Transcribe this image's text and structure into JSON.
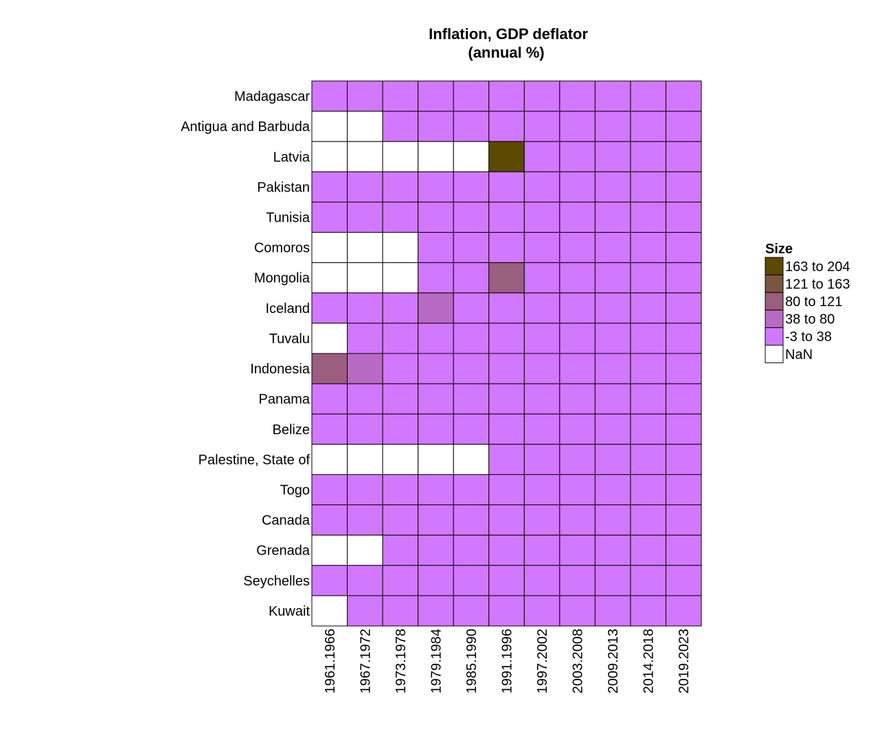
{
  "chart_data": {
    "type": "heatmap",
    "title": "Inflation, GDP deflator",
    "subtitle": "(annual %)",
    "columns": [
      "1961.1966",
      "1967.1972",
      "1973.1978",
      "1979.1984",
      "1985.1990",
      "1991.1996",
      "1997.2002",
      "2003.2008",
      "2009.2013",
      "2014.2018",
      "2019.2023"
    ],
    "rows": [
      "Madagascar",
      "Antigua and Barbuda",
      "Latvia",
      "Pakistan",
      "Tunisia",
      "Comoros",
      "Mongolia",
      "Iceland",
      "Tuvalu",
      "Indonesia",
      "Panama",
      "Belize",
      "Palestine, State of",
      "Togo",
      "Canada",
      "Grenada",
      "Seychelles",
      "Kuwait"
    ],
    "cells": [
      [
        1,
        1,
        1,
        1,
        1,
        1,
        1,
        1,
        1,
        1,
        1
      ],
      [
        0,
        0,
        1,
        1,
        1,
        1,
        1,
        1,
        1,
        1,
        1
      ],
      [
        0,
        0,
        0,
        0,
        0,
        5,
        1,
        1,
        1,
        1,
        1
      ],
      [
        1,
        1,
        1,
        1,
        1,
        1,
        1,
        1,
        1,
        1,
        1
      ],
      [
        1,
        1,
        1,
        1,
        1,
        1,
        1,
        1,
        1,
        1,
        1
      ],
      [
        0,
        0,
        0,
        1,
        1,
        1,
        1,
        1,
        1,
        1,
        1
      ],
      [
        0,
        0,
        0,
        1,
        1,
        3,
        1,
        1,
        1,
        1,
        1
      ],
      [
        1,
        1,
        1,
        2,
        1,
        1,
        1,
        1,
        1,
        1,
        1
      ],
      [
        0,
        1,
        1,
        1,
        1,
        1,
        1,
        1,
        1,
        1,
        1
      ],
      [
        3,
        2,
        1,
        1,
        1,
        1,
        1,
        1,
        1,
        1,
        1
      ],
      [
        1,
        1,
        1,
        1,
        1,
        1,
        1,
        1,
        1,
        1,
        1
      ],
      [
        1,
        1,
        1,
        1,
        1,
        1,
        1,
        1,
        1,
        1,
        1
      ],
      [
        0,
        0,
        0,
        0,
        0,
        1,
        1,
        1,
        1,
        1,
        1
      ],
      [
        1,
        1,
        1,
        1,
        1,
        1,
        1,
        1,
        1,
        1,
        1
      ],
      [
        1,
        1,
        1,
        1,
        1,
        1,
        1,
        1,
        1,
        1,
        1
      ],
      [
        0,
        0,
        1,
        1,
        1,
        1,
        1,
        1,
        1,
        1,
        1
      ],
      [
        1,
        1,
        1,
        1,
        1,
        1,
        1,
        1,
        1,
        1,
        1
      ],
      [
        0,
        1,
        1,
        1,
        1,
        1,
        1,
        1,
        1,
        1,
        1
      ]
    ],
    "legend": {
      "title": "Size",
      "placement": "right",
      "bins": [
        {
          "label": "163 to 204",
          "color": "#5c4a00"
        },
        {
          "label": "121 to 163",
          "color": "#7a5542"
        },
        {
          "label": "80 to 121",
          "color": "#9a5e7e"
        },
        {
          "label": "38 to 80",
          "color": "#b86bc2"
        },
        {
          "label": "-3 to 38",
          "color": "#d278ff"
        },
        {
          "label": "NaN",
          "color": "#ffffff"
        }
      ]
    }
  }
}
